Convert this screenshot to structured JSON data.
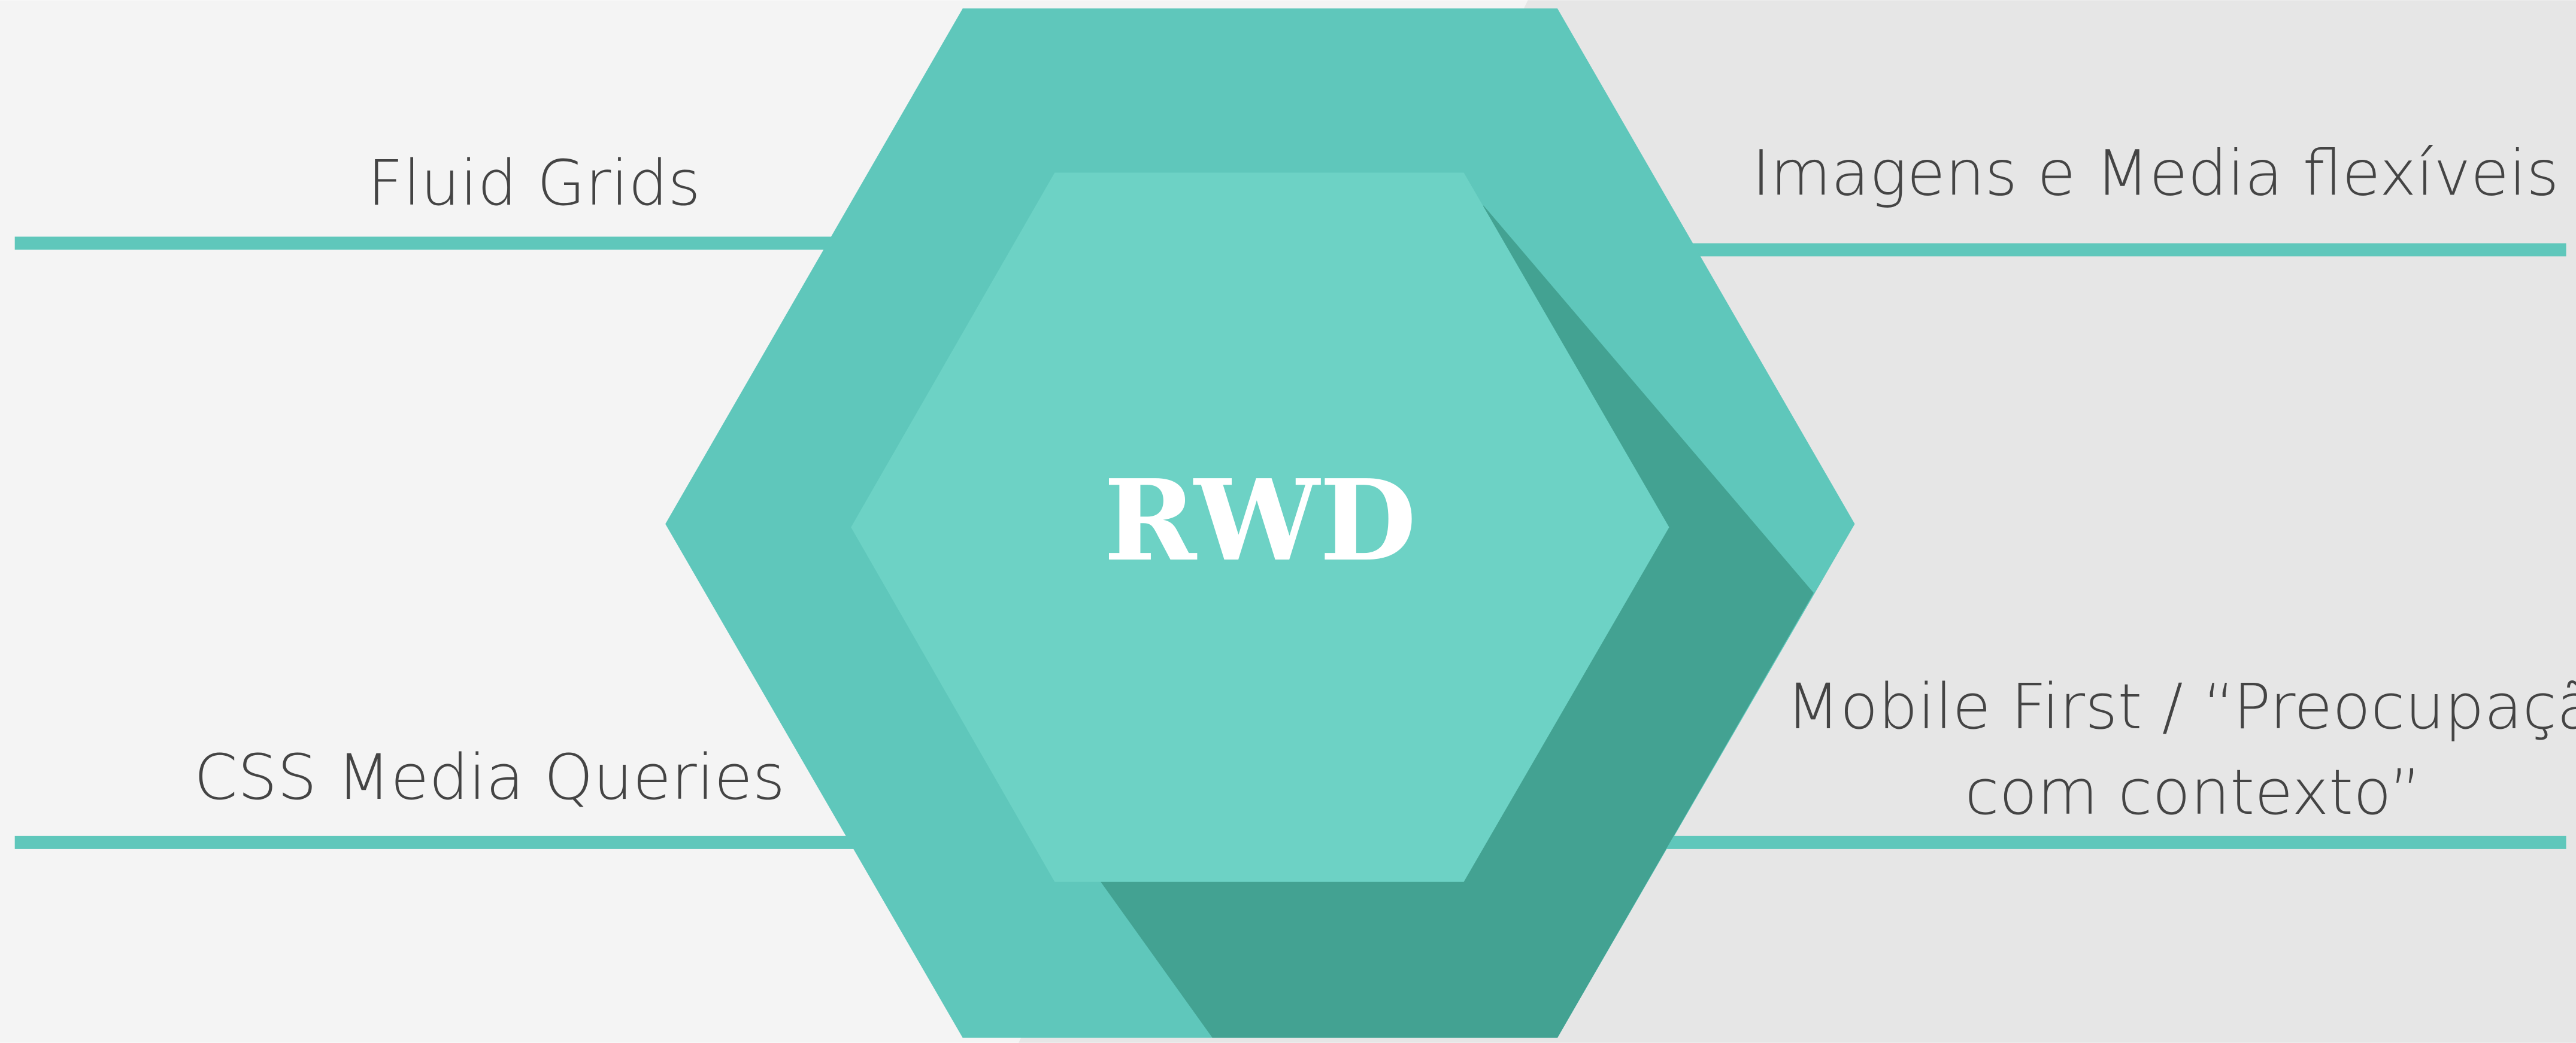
{
  "center": {
    "label": "RWD"
  },
  "features": [
    {
      "lines": [
        "Fluid Grids"
      ]
    },
    {
      "lines": [
        "Imagens e Media flexíveis"
      ]
    },
    {
      "lines": [
        "CSS Media Queries"
      ]
    },
    {
      "lines": [
        "Mobile First / “Preocupação",
        "com contexto”"
      ]
    }
  ]
}
